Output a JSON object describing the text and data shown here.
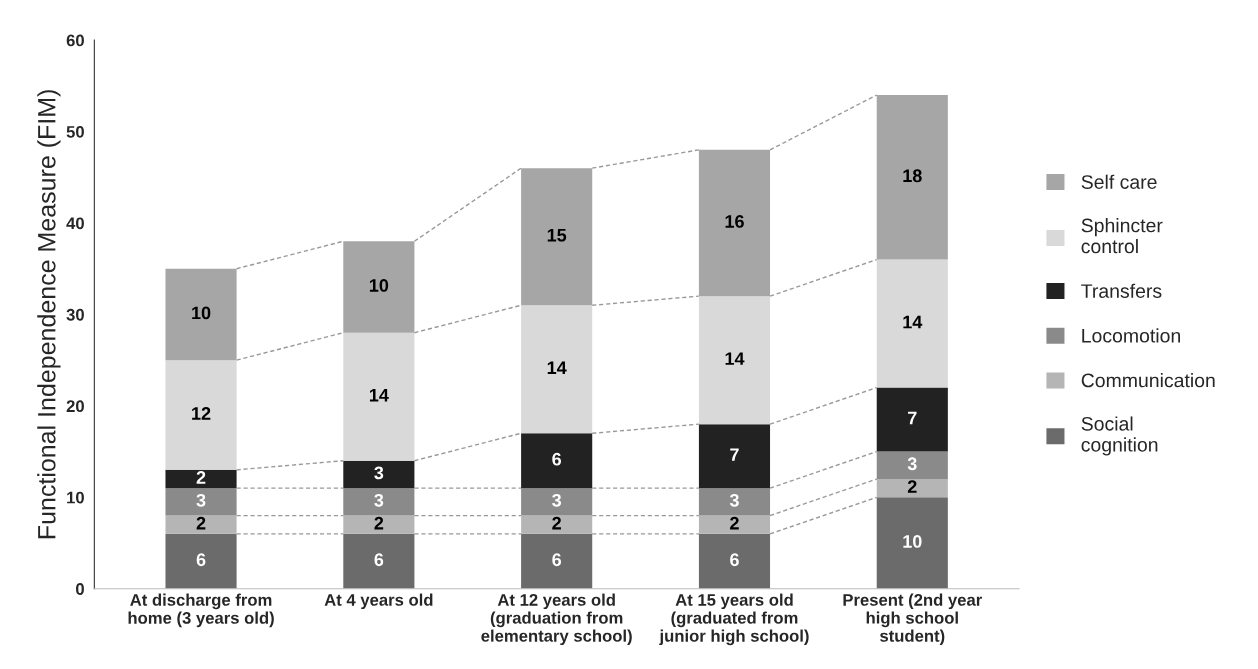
{
  "chart_data": {
    "type": "bar",
    "stacked": true,
    "ylabel": "Functional Independence Measure (FIM)",
    "categories": [
      "At discharge from\nhome (3 years old)",
      "At 4 years old",
      "At 12 years old\n(graduation from\nelementary school)",
      "At 15 years old\n(graduated from\njunior high school)",
      "Present (2nd year\nhigh school\nstudent)"
    ],
    "series": [
      {
        "name": "Social\ncognition",
        "color": "#6b6b6b",
        "values": [
          6,
          6,
          6,
          6,
          10
        ]
      },
      {
        "name": "Communication",
        "color": "#b5b5b5",
        "values": [
          2,
          2,
          2,
          2,
          2
        ]
      },
      {
        "name": "Locomotion",
        "color": "#8a8a8a",
        "values": [
          3,
          3,
          3,
          3,
          3
        ]
      },
      {
        "name": "Transfers",
        "color": "#222222",
        "values": [
          2,
          3,
          6,
          7,
          7
        ]
      },
      {
        "name": "Sphincter\ncontrol",
        "color": "#d9d9d9",
        "values": [
          12,
          14,
          14,
          14,
          14
        ]
      },
      {
        "name": "Self care",
        "color": "#a6a6a6",
        "values": [
          10,
          10,
          15,
          16,
          18
        ]
      }
    ],
    "ylim": [
      0,
      60
    ],
    "yticks": [
      0,
      10,
      20,
      30,
      40,
      50,
      60
    ],
    "data_labels": true,
    "legend": "right",
    "grid": false
  }
}
